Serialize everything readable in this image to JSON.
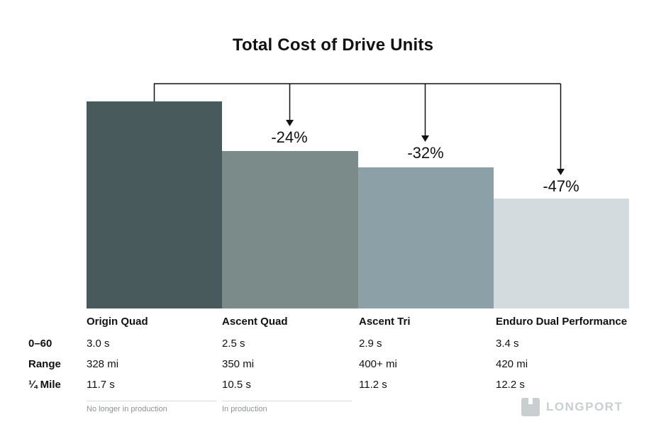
{
  "chart_data": {
    "type": "bar",
    "title": "Total Cost of Drive Units",
    "categories": [
      "Origin Quad",
      "Ascent Quad",
      "Ascent Tri",
      "Enduro Dual Performance"
    ],
    "values": [
      100,
      76,
      68,
      53
    ],
    "ylim": [
      0,
      100
    ],
    "grid": false,
    "legend_position": "none",
    "annotations": [
      "",
      "-24%",
      "-32%",
      "-47%"
    ],
    "bar_colors": [
      "#485a5b",
      "#7a8b8a",
      "#8ba1a7",
      "#d4dbde"
    ],
    "spec_table": {
      "row_labels": [
        "0–60",
        "Range",
        "¼ Mile"
      ],
      "rows": [
        [
          "3.0 s",
          "2.5 s",
          "2.9 s",
          "3.4 s"
        ],
        [
          "328 mi",
          "350 mi",
          "400+ mi",
          "420 mi"
        ],
        [
          "11.7 s",
          "10.5 s",
          "11.2 s",
          "12.2 s"
        ]
      ]
    },
    "footnotes": [
      "No longer in production",
      "In production"
    ]
  },
  "watermark": {
    "label": "LONGPORT"
  }
}
